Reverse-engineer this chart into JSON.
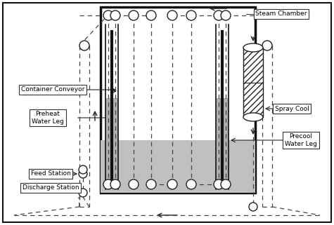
{
  "bg_color": "#ffffff",
  "labels": {
    "steam_chamber": "Steam Chamber",
    "container_conveyor": "Container Conveyor",
    "preheat_water_leg": "Preheat\nWater Leg",
    "spray_cool": "Spray Cool",
    "precool_water_leg": "Precool\nWater Leg",
    "feed_station": "Feed Station",
    "discharge_station": "Discharge Station"
  },
  "colors": {
    "border": "#111111",
    "gray_fill": "#bbbbbb",
    "dark_gray_fill": "#999999",
    "leg_wall": "#111111",
    "dashed": "#444444"
  }
}
